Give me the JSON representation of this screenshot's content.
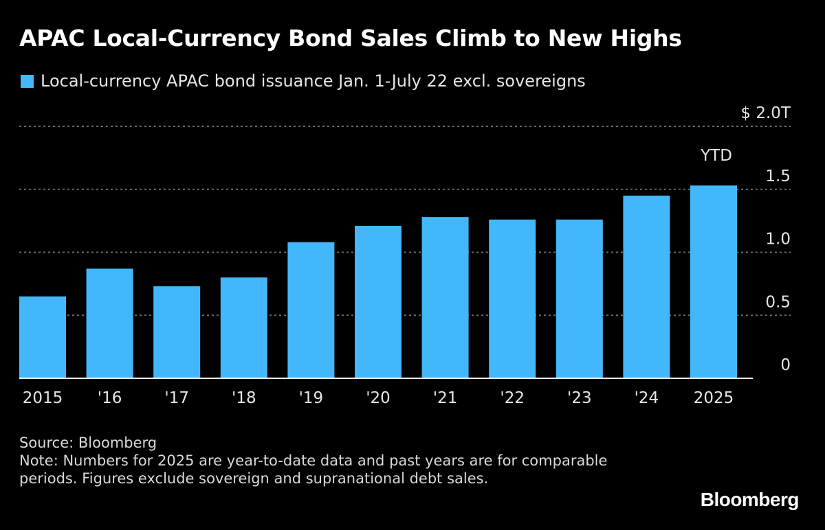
{
  "colors": {
    "bar": "#43b7fb",
    "grid": "#6b6b6b",
    "axis": "#ffffff"
  },
  "chart_data": {
    "type": "bar",
    "title": "APAC Local-Currency Bond Sales Climb to New Highs",
    "legend": [
      "Local-currency APAC bond issuance Jan. 1-July 22 excl. sovereigns"
    ],
    "categories": [
      "2015",
      "'16",
      "'17",
      "'18",
      "'19",
      "'20",
      "'21",
      "'22",
      "'23",
      "'24",
      "2025"
    ],
    "values": [
      0.65,
      0.87,
      0.73,
      0.8,
      1.08,
      1.21,
      1.28,
      1.26,
      1.26,
      1.45,
      1.53
    ],
    "yticks": [
      {
        "value": 0,
        "label": "0"
      },
      {
        "value": 0.5,
        "label": "0.5"
      },
      {
        "value": 1.0,
        "label": "1.0"
      },
      {
        "value": 1.5,
        "label": "1.5"
      },
      {
        "value": 2.0,
        "label": "$ 2.0T"
      }
    ],
    "ylim": [
      0,
      2.0
    ],
    "annotations": [
      {
        "category": "2025",
        "text": "YTD"
      }
    ],
    "xlabel": "",
    "ylabel": ""
  },
  "footer": {
    "source": "Source: Bloomberg",
    "note": "Note: Numbers for 2025 are year-to-date data and past years are for comparable periods. Figures exclude sovereign and supranational debt sales."
  },
  "brand": "Bloomberg"
}
